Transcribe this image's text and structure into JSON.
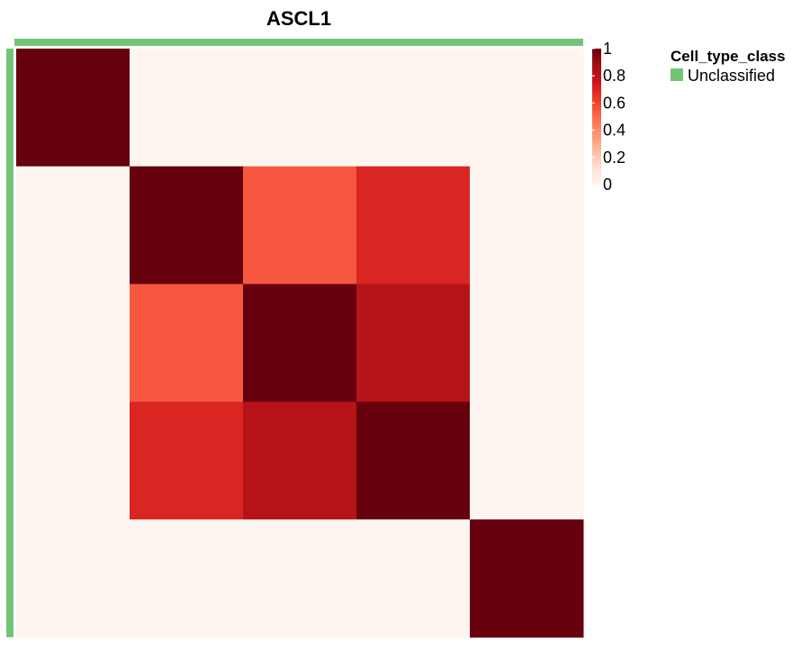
{
  "chart_data": {
    "type": "heatmap",
    "title": "ASCL1",
    "xlabel": "",
    "ylabel": "",
    "rows": 5,
    "cols": 5,
    "values": [
      [
        1.0,
        0.0,
        0.0,
        0.0,
        0.0
      ],
      [
        0.0,
        1.0,
        0.55,
        0.7,
        0.0
      ],
      [
        0.0,
        0.55,
        1.0,
        0.82,
        0.0
      ],
      [
        0.0,
        0.7,
        0.82,
        1.0,
        0.0
      ],
      [
        0.0,
        0.0,
        0.0,
        0.0,
        1.0
      ]
    ],
    "colorbar": {
      "range": [
        0,
        1
      ],
      "tick_values": [
        1,
        0.8,
        0.6,
        0.4,
        0.2,
        0
      ],
      "tick_labels": [
        "1",
        "0.8",
        "0.6",
        "0.4",
        "0.2",
        "0"
      ],
      "colors": [
        "#FFF5F0",
        "#FEE0D2",
        "#FCBBA1",
        "#FC9272",
        "#FB6A4A",
        "#EF3B2C",
        "#CB181D",
        "#A50F15",
        "#67000D"
      ]
    },
    "annotation": {
      "legend_title": "Cell_type_class",
      "categories": [
        {
          "name": "Unclassified",
          "color": "#74C476"
        }
      ]
    }
  }
}
